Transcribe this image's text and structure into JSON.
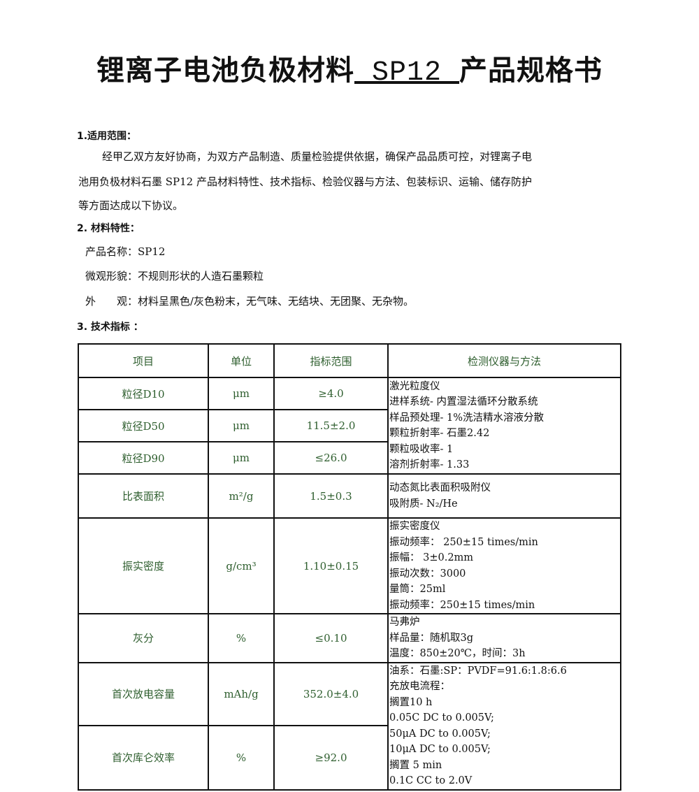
{
  "title": {
    "prefix": "锂离子电池负极材料",
    "product": " SP12 ",
    "suffix": "产品规格书"
  },
  "sections": {
    "s1": {
      "heading": "1.适用范围：",
      "body_lines": [
        "经甲乙双方友好协商，为双方产品制造、质量检验提供依据，确保产品品质可控，对锂离子电",
        "池用负极材料石墨 SP12 产品材料特性、技术指标、检验仪器与方法、包装标识、运输、储存防护",
        "等方面达成以下协议。"
      ]
    },
    "s2": {
      "heading": "2. 材料特性：",
      "lines": [
        "产品名称：SP12",
        "微观形貌：不规则形状的人造石墨颗粒",
        "外　　观：材料呈黑色/灰色粉末，无气味、无结块、无团聚、无杂物。"
      ]
    },
    "s3": {
      "heading": "3. 技术指标 ："
    }
  },
  "table": {
    "headers": [
      "项目",
      "单位",
      "指标范围",
      "检测仪器与方法"
    ],
    "rows": [
      {
        "item": "粒径D10",
        "unit": "μm",
        "range": "≥4.0"
      },
      {
        "item": "粒径D50",
        "unit": "μm",
        "range": "11.5±2.0"
      },
      {
        "item": "粒径D90",
        "unit": "μm",
        "range": "≤26.0"
      },
      {
        "item": "比表面积",
        "unit": "m²/g",
        "range": "1.5±0.3"
      },
      {
        "item": "振实密度",
        "unit": "g/cm³",
        "range": "1.10±0.15"
      },
      {
        "item": "灰分",
        "unit": "%",
        "range": "≤0.10"
      },
      {
        "item": "首次放电容量",
        "unit": "mAh/g",
        "range": "352.0±4.0"
      },
      {
        "item": "首次库仑效率",
        "unit": "%",
        "range": "≥92.0"
      }
    ],
    "methods": [
      [
        "激光粒度仪",
        "进样系统- 内置湿法循环分散系统",
        "样品预处理- 1%洗洁精水溶液分散",
        "颗粒折射率- 石墨2.42",
        "颗粒吸收率- 1",
        "溶剂折射率- 1.33"
      ],
      [
        "动态氮比表面积吸附仪",
        "吸附质- N₂/He"
      ],
      [
        "振实密度仪",
        "振动频率： 250±15 times/min",
        "振幅： 3±0.2mm",
        "振动次数：3000",
        "量筒：25ml",
        "振动频率：250±15 times/min"
      ],
      [
        "马弗炉",
        "样品量：随机取3g",
        "温度：850±20℃，时间：3h"
      ],
      [
        "油系：石墨:SP：PVDF=91.6:1.8:6.6",
        "充放电流程：",
        "搁置10 h",
        "0.05C DC to 0.005V;",
        "50μA DC to 0.005V;",
        "10μA DC to 0.005V;",
        "搁置 5 min",
        "0.1C CC to 2.0V"
      ]
    ]
  }
}
